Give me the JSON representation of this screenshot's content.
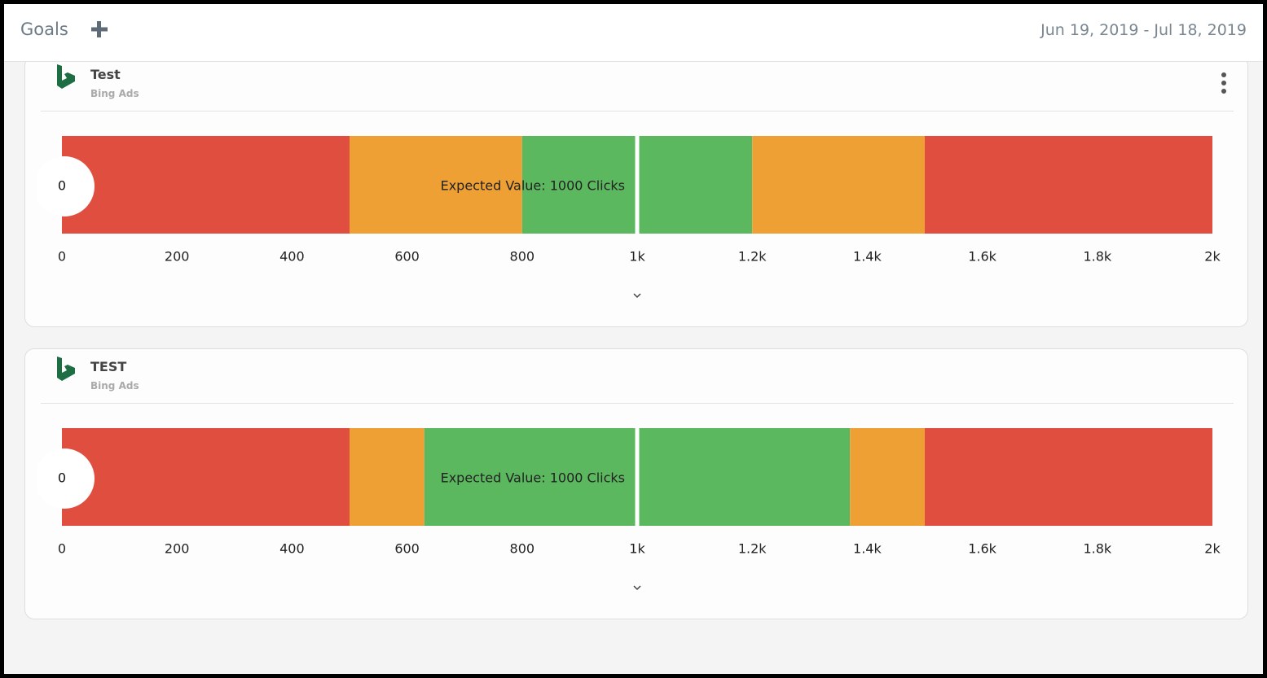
{
  "header": {
    "title": "Goals",
    "date_range": "Jun 19, 2019 - Jul 18, 2019"
  },
  "cards": [
    {
      "title": "Test",
      "subtitle": "Bing Ads",
      "menu": true,
      "gauge": {
        "type": "bullet",
        "xlim": [
          0,
          2000
        ],
        "xticks": [
          0,
          200,
          400,
          600,
          800,
          {
            "value": 1000,
            "label": "1k"
          },
          {
            "value": 1200,
            "label": "1.2k"
          },
          {
            "value": 1400,
            "label": "1.4k"
          },
          {
            "value": 1600,
            "label": "1.6k"
          },
          {
            "value": 1800,
            "label": "1.8k"
          },
          {
            "value": 2000,
            "label": "2k"
          }
        ],
        "bands": [
          {
            "from": 0,
            "to": 500,
            "color": "#e04e40"
          },
          {
            "from": 500,
            "to": 800,
            "color": "#efa035"
          },
          {
            "from": 800,
            "to": 1200,
            "color": "#5cb85f"
          },
          {
            "from": 1200,
            "to": 1500,
            "color": "#efa035"
          },
          {
            "from": 1500,
            "to": 2000,
            "color": "#e04e40"
          }
        ],
        "expected": 1000,
        "expected_label": "Expected Value: 1000 Clicks",
        "current": 0
      }
    },
    {
      "title": "TEST",
      "subtitle": "Bing Ads",
      "menu": false,
      "gauge": {
        "type": "bullet",
        "xlim": [
          0,
          2000
        ],
        "xticks": [
          0,
          200,
          400,
          600,
          800,
          {
            "value": 1000,
            "label": "1k"
          },
          {
            "value": 1200,
            "label": "1.2k"
          },
          {
            "value": 1400,
            "label": "1.4k"
          },
          {
            "value": 1600,
            "label": "1.6k"
          },
          {
            "value": 1800,
            "label": "1.8k"
          },
          {
            "value": 2000,
            "label": "2k"
          }
        ],
        "bands": [
          {
            "from": 0,
            "to": 500,
            "color": "#e04e40"
          },
          {
            "from": 500,
            "to": 630,
            "color": "#efa035"
          },
          {
            "from": 630,
            "to": 1370,
            "color": "#5cb85f"
          },
          {
            "from": 1370,
            "to": 1500,
            "color": "#efa035"
          },
          {
            "from": 1500,
            "to": 2000,
            "color": "#e04e40"
          }
        ],
        "expected": 1000,
        "expected_label": "Expected Value: 1000 Clicks",
        "current": 0
      }
    }
  ]
}
